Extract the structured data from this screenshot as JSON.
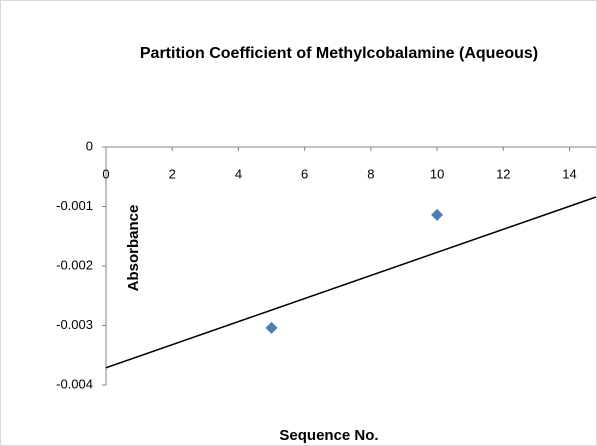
{
  "chart_data": {
    "type": "scatter",
    "title": "Partition Coefficient of Methylcobalamine (Aqueous)",
    "x_label": "Sequence No.",
    "y_label": "Absorbance",
    "series": [
      {
        "x": [
          5,
          10
        ],
        "values": [
          -0.00304,
          -0.00114
        ],
        "color": "#4a7ebb"
      }
    ],
    "trendline": {
      "x": [
        0,
        14.8
      ],
      "values": [
        -0.00371,
        -0.00084
      ],
      "color": "#000000"
    },
    "xlim": [
      0,
      14.8
    ],
    "xticks": [
      0,
      2,
      4,
      6,
      8,
      10,
      12,
      14
    ],
    "ylim": [
      -0.004,
      0
    ],
    "yticks": [
      0,
      -0.001,
      -0.002,
      -0.003,
      -0.004
    ],
    "grid": false
  }
}
